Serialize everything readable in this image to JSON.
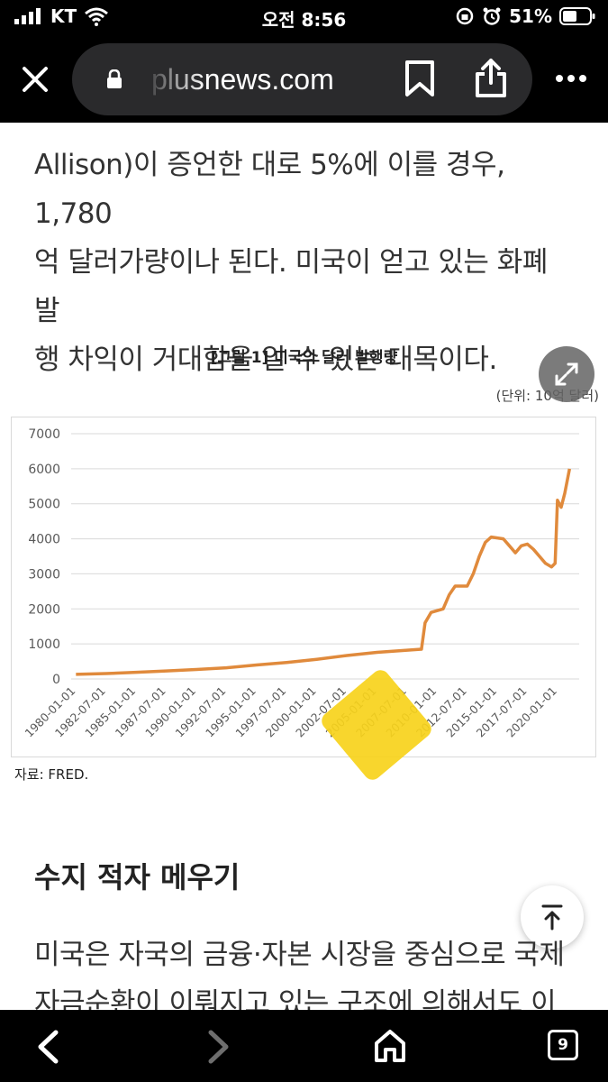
{
  "status_bar": {
    "carrier": "KT",
    "time": "오전 8:56",
    "battery_percent": "51%",
    "icons": [
      "signal-icon",
      "wifi-icon",
      "orientation-lock-icon",
      "alarm-icon",
      "battery-icon"
    ]
  },
  "browser": {
    "url_text": "plusnews.com",
    "icons": [
      "close-icon",
      "lock-icon",
      "bookmark-icon",
      "share-icon",
      "more-icon"
    ]
  },
  "article": {
    "para1_lines": [
      "Allison)이 증언한 대로 5%에 이를 경우, 1,780",
      "억 달러가량이나 된다. 미국이 얻고 있는 화폐 발",
      "행 차익이 거대함을 알 수 있는 대목이다."
    ],
    "figure_title": "[그림 1] 미국의 달러 발행량",
    "figure_unit": "(단위: 10억 달러)",
    "figure_source": "자료: FRED.",
    "subheading": "수지 적자 메우기",
    "para2_lines": [
      "미국은 자국의 금융·자본 시장을 중심으로 국제",
      "자금순환이 이뤄지고 있는 구조에 의해서도 이익"
    ]
  },
  "chart_data": {
    "type": "line",
    "title": "[그림 1] 미국의 달러 발행량",
    "unit": "(단위: 10억 달러)",
    "series": [
      {
        "values": [
          [
            1980.0,
            130
          ],
          [
            1982.5,
            155
          ],
          [
            1985.0,
            190
          ],
          [
            1987.5,
            230
          ],
          [
            1990.0,
            270
          ],
          [
            1992.5,
            320
          ],
          [
            1995.0,
            400
          ],
          [
            1997.5,
            470
          ],
          [
            2000.0,
            560
          ],
          [
            2002.5,
            670
          ],
          [
            2005.0,
            760
          ],
          [
            2007.5,
            820
          ],
          [
            2008.7,
            850
          ],
          [
            2009.0,
            1600
          ],
          [
            2009.5,
            1900
          ],
          [
            2010.5,
            2000
          ],
          [
            2011.0,
            2400
          ],
          [
            2011.5,
            2650
          ],
          [
            2012.5,
            2650
          ],
          [
            2013.0,
            3000
          ],
          [
            2013.5,
            3500
          ],
          [
            2014.0,
            3900
          ],
          [
            2014.5,
            4050
          ],
          [
            2015.5,
            4000
          ],
          [
            2016.0,
            3800
          ],
          [
            2016.5,
            3600
          ],
          [
            2017.0,
            3800
          ],
          [
            2017.5,
            3850
          ],
          [
            2018.0,
            3700
          ],
          [
            2018.5,
            3500
          ],
          [
            2019.0,
            3300
          ],
          [
            2019.5,
            3200
          ],
          [
            2019.8,
            3300
          ],
          [
            2020.0,
            5100
          ],
          [
            2020.3,
            4900
          ],
          [
            2020.6,
            5300
          ],
          [
            2021.0,
            6000
          ]
        ]
      }
    ],
    "y_ticks": [
      "7000",
      "6000",
      "5000",
      "4000",
      "3000",
      "2000",
      "1000",
      "0"
    ],
    "x_ticks": [
      "1980-01-01",
      "1982-07-01",
      "1985-01-01",
      "1987-07-01",
      "1990-01-01",
      "1992-07-01",
      "1995-01-01",
      "1997-07-01",
      "2000-01-01",
      "2002-07-01",
      "2005-01-01",
      "2007-07-01",
      "2010-01-01",
      "2012-07-01",
      "2015-01-01",
      "2017-07-01",
      "2020-01-01"
    ],
    "ylim": [
      0,
      7000
    ],
    "xlim": [
      1979.6,
      2021.8
    ],
    "grid": true,
    "line_color": "#e08a3c"
  },
  "bottom_nav": {
    "tab_count": "9",
    "icons": [
      "back-icon",
      "forward-icon",
      "home-icon",
      "tabs-icon"
    ]
  },
  "colors": {
    "accent_line": "#e08a3c",
    "highlight": "#f7d21b"
  }
}
